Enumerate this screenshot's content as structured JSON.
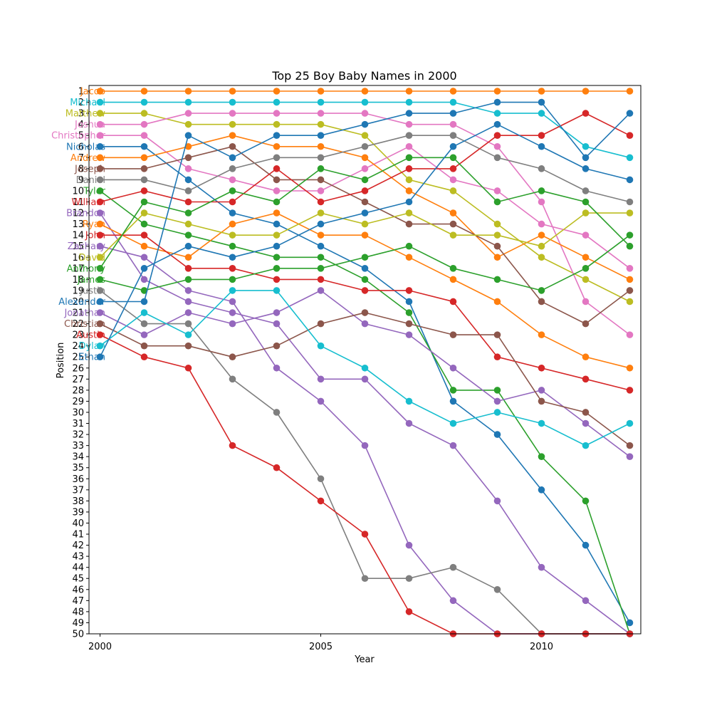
{
  "chart_data": {
    "type": "line",
    "title": "Top 25 Boy Baby Names in 2000",
    "xlabel": "Year",
    "ylabel": "Position",
    "xlim": [
      1999.75,
      2012.25
    ],
    "ylim": [
      50,
      1
    ],
    "x_ticks": [
      2000,
      2005,
      2010
    ],
    "y_ticks": [
      1,
      2,
      3,
      4,
      5,
      6,
      7,
      8,
      9,
      10,
      11,
      12,
      13,
      14,
      15,
      16,
      17,
      18,
      19,
      20,
      21,
      22,
      23,
      24,
      25,
      26,
      27,
      28,
      29,
      30,
      31,
      32,
      33,
      34,
      35,
      36,
      37,
      38,
      39,
      40,
      41,
      42,
      43,
      44,
      45,
      46,
      47,
      48,
      49,
      50
    ],
    "grid": false,
    "legend": "names labeled at left of each series at the year 2000 point",
    "x": [
      2000,
      2001,
      2002,
      2003,
      2004,
      2005,
      2006,
      2007,
      2008,
      2009,
      2010,
      2011,
      2012
    ],
    "series": [
      {
        "name": "Jacob",
        "color": "#ff7f0e",
        "values": [
          1,
          1,
          1,
          1,
          1,
          1,
          1,
          1,
          1,
          1,
          1,
          1,
          1
        ]
      },
      {
        "name": "Michael",
        "color": "#17becf",
        "values": [
          2,
          2,
          2,
          2,
          2,
          2,
          2,
          2,
          2,
          3,
          3,
          6,
          7
        ]
      },
      {
        "name": "Matthew",
        "color": "#bcbd22",
        "values": [
          3,
          3,
          4,
          4,
          4,
          4,
          5,
          9,
          10,
          13,
          16,
          18,
          20
        ]
      },
      {
        "name": "Joshua",
        "color": "#e377c2",
        "values": [
          4,
          4,
          3,
          3,
          3,
          3,
          3,
          4,
          4,
          6,
          11,
          20,
          23
        ]
      },
      {
        "name": "Christopher",
        "color": "#e377c2",
        "values": [
          5,
          5,
          8,
          9,
          10,
          10,
          8,
          6,
          9,
          10,
          13,
          14,
          17
        ]
      },
      {
        "name": "Nicholas",
        "color": "#1f77b4",
        "values": [
          6,
          6,
          9,
          12,
          13,
          15,
          17,
          20,
          29,
          32,
          37,
          42,
          49
        ]
      },
      {
        "name": "Andrew",
        "color": "#ff7f0e",
        "values": [
          7,
          7,
          6,
          5,
          6,
          6,
          7,
          10,
          12,
          16,
          14,
          16,
          18
        ]
      },
      {
        "name": "Joseph",
        "color": "#8c564b",
        "values": [
          8,
          8,
          7,
          6,
          9,
          9,
          11,
          13,
          13,
          15,
          20,
          22,
          19
        ]
      },
      {
        "name": "Daniel",
        "color": "#7f7f7f",
        "values": [
          9,
          9,
          10,
          8,
          7,
          7,
          6,
          5,
          5,
          7,
          8,
          10,
          11
        ]
      },
      {
        "name": "Tyler",
        "color": "#2ca02c",
        "values": [
          10,
          13,
          14,
          15,
          16,
          16,
          18,
          21,
          28,
          28,
          34,
          38,
          50
        ]
      },
      {
        "name": "William",
        "color": "#d62728",
        "values": [
          11,
          10,
          11,
          11,
          8,
          11,
          10,
          8,
          8,
          5,
          5,
          3,
          5
        ]
      },
      {
        "name": "Brandon",
        "color": "#9467bd",
        "values": [
          12,
          18,
          20,
          21,
          22,
          27,
          27,
          31,
          33,
          38,
          44,
          47,
          50
        ]
      },
      {
        "name": "Ryan",
        "color": "#ff7f0e",
        "values": [
          13,
          15,
          16,
          13,
          12,
          14,
          14,
          16,
          18,
          20,
          23,
          25,
          26
        ]
      },
      {
        "name": "John",
        "color": "#d62728",
        "values": [
          14,
          14,
          17,
          17,
          18,
          18,
          19,
          19,
          20,
          25,
          26,
          27,
          28
        ]
      },
      {
        "name": "Zachary",
        "color": "#9467bd",
        "values": [
          15,
          16,
          19,
          20,
          26,
          29,
          33,
          42,
          47,
          50,
          50,
          50,
          50
        ]
      },
      {
        "name": "David",
        "color": "#bcbd22",
        "values": [
          16,
          12,
          13,
          14,
          14,
          12,
          13,
          12,
          14,
          14,
          15,
          12,
          12
        ]
      },
      {
        "name": "Anthony",
        "color": "#2ca02c",
        "values": [
          17,
          11,
          12,
          10,
          11,
          8,
          9,
          7,
          7,
          11,
          10,
          11,
          15
        ]
      },
      {
        "name": "James",
        "color": "#2ca02c",
        "values": [
          18,
          19,
          18,
          18,
          17,
          17,
          16,
          15,
          17,
          18,
          19,
          17,
          14
        ]
      },
      {
        "name": "Justin",
        "color": "#7f7f7f",
        "values": [
          19,
          22,
          22,
          27,
          30,
          36,
          45,
          45,
          44,
          46,
          50,
          50,
          50
        ]
      },
      {
        "name": "Alexander",
        "color": "#1f77b4",
        "values": [
          20,
          20,
          5,
          7,
          5,
          5,
          4,
          3,
          3,
          2,
          2,
          7,
          3
        ]
      },
      {
        "name": "Jonathan",
        "color": "#9467bd",
        "values": [
          21,
          23,
          21,
          22,
          21,
          19,
          22,
          23,
          26,
          29,
          28,
          31,
          34
        ]
      },
      {
        "name": "Christian",
        "color": "#8c564b",
        "values": [
          22,
          24,
          24,
          25,
          24,
          22,
          21,
          22,
          23,
          23,
          29,
          30,
          33
        ]
      },
      {
        "name": "Austin",
        "color": "#d62728",
        "values": [
          23,
          25,
          26,
          33,
          35,
          38,
          41,
          48,
          50,
          50,
          50,
          50,
          50
        ]
      },
      {
        "name": "Dylan",
        "color": "#17becf",
        "values": [
          24,
          21,
          23,
          19,
          19,
          24,
          26,
          29,
          31,
          30,
          31,
          33,
          31
        ]
      },
      {
        "name": "Ethan",
        "color": "#1f77b4",
        "values": [
          25,
          17,
          15,
          16,
          15,
          13,
          12,
          11,
          6,
          4,
          6,
          8,
          9
        ]
      }
    ]
  }
}
